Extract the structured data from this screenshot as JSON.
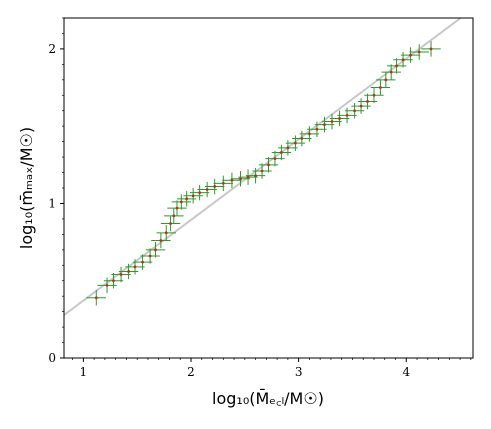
{
  "chart_data": {
    "type": "scatter",
    "title": "",
    "xlabel": "log₁₀(M̄ₑ꜀ₗ/M☉)",
    "ylabel": "log₁₀(m̄ₘₐₓ/M☉)",
    "xlim": [
      0.82,
      4.62
    ],
    "ylim": [
      0,
      2.2
    ],
    "xticks": [
      1,
      2,
      3,
      4
    ],
    "yticks": [
      0,
      1,
      2
    ],
    "x_tick_labels": [
      "1",
      "2",
      "3",
      "4"
    ],
    "y_tick_labels": [
      "0",
      "1",
      "2"
    ],
    "grid": false,
    "legend": "none",
    "reference_line": {
      "name": "",
      "slope": 0.5217,
      "intercept": -0.15,
      "color": "#c8c8c8"
    },
    "errorbar_color": "#2b9a2b",
    "marker_color": "#b5321c",
    "series": [
      {
        "name": "",
        "x_err": 0.09,
        "y_err": 0.05,
        "points": [
          [
            1.12,
            0.39
          ],
          [
            1.22,
            0.47
          ],
          [
            1.28,
            0.5
          ],
          [
            1.35,
            0.54
          ],
          [
            1.42,
            0.56
          ],
          [
            1.48,
            0.59
          ],
          [
            1.55,
            0.62
          ],
          [
            1.62,
            0.66
          ],
          [
            1.67,
            0.7
          ],
          [
            1.72,
            0.76
          ],
          [
            1.77,
            0.81
          ],
          [
            1.81,
            0.87
          ],
          [
            1.84,
            0.92
          ],
          [
            1.87,
            0.97
          ],
          [
            1.91,
            1.01
          ],
          [
            1.96,
            1.03
          ],
          [
            2.02,
            1.05
          ],
          [
            2.08,
            1.07
          ],
          [
            2.15,
            1.09
          ],
          [
            2.22,
            1.11
          ],
          [
            2.3,
            1.13
          ],
          [
            2.38,
            1.15
          ],
          [
            2.46,
            1.16
          ],
          [
            2.53,
            1.17
          ],
          [
            2.6,
            1.18
          ],
          [
            2.66,
            1.21
          ],
          [
            2.72,
            1.25
          ],
          [
            2.78,
            1.29
          ],
          [
            2.84,
            1.33
          ],
          [
            2.9,
            1.36
          ],
          [
            2.97,
            1.39
          ],
          [
            3.03,
            1.42
          ],
          [
            3.1,
            1.45
          ],
          [
            3.17,
            1.48
          ],
          [
            3.24,
            1.51
          ],
          [
            3.31,
            1.53
          ],
          [
            3.38,
            1.55
          ],
          [
            3.45,
            1.57
          ],
          [
            3.52,
            1.6
          ],
          [
            3.58,
            1.63
          ],
          [
            3.64,
            1.66
          ],
          [
            3.7,
            1.7
          ],
          [
            3.76,
            1.75
          ],
          [
            3.81,
            1.8
          ],
          [
            3.86,
            1.85
          ],
          [
            3.91,
            1.89
          ],
          [
            3.97,
            1.93
          ],
          [
            4.04,
            1.96
          ],
          [
            4.12,
            1.98
          ],
          [
            4.23,
            2.0
          ]
        ]
      }
    ]
  }
}
